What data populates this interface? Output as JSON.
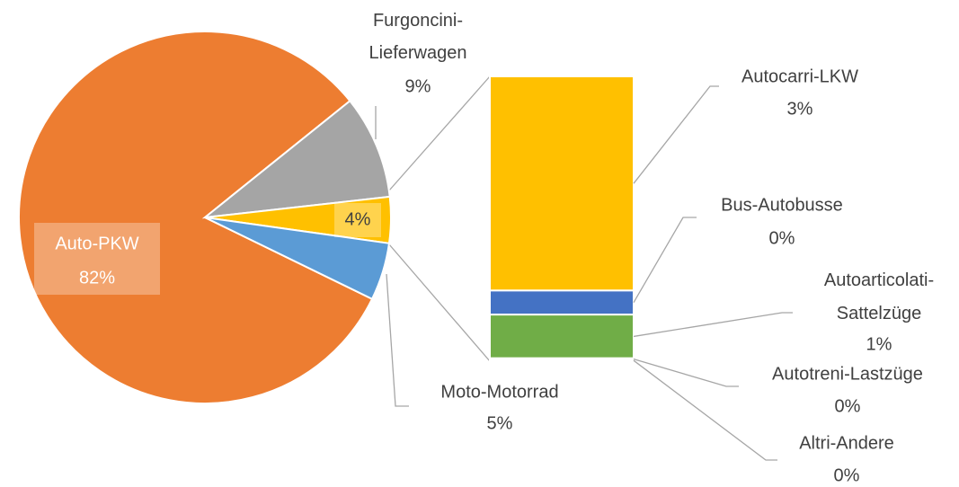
{
  "chart_data": {
    "type": "bar_of_pie",
    "categories": [
      "Auto-PKW",
      "Furgoncini-Lieferwagen",
      null,
      "Moto-Motorrad"
    ],
    "values": [
      82,
      9,
      4,
      5
    ],
    "value_labels": [
      "82%",
      "9%",
      "4%",
      "5%"
    ],
    "colors": [
      "#ed7d31",
      "#a5a5a5",
      "#ffc000",
      "#5b9bd5"
    ],
    "breakdown": {
      "categories": [
        "Autocarri-LKW",
        "Bus-Autobusse",
        "Autoarticolati-Sattelzüge",
        "Autotreni-Lastzüge",
        "Altri-Andere"
      ],
      "values": [
        2.94,
        0.33,
        0.6,
        0.02,
        0.02
      ],
      "value_labels": [
        "3%",
        "0%",
        "1%",
        "0%",
        "0%"
      ],
      "colors": [
        "#ffc000",
        "#4472c4",
        "#70ad47",
        "#a5a5a5",
        "#264478"
      ]
    }
  }
}
